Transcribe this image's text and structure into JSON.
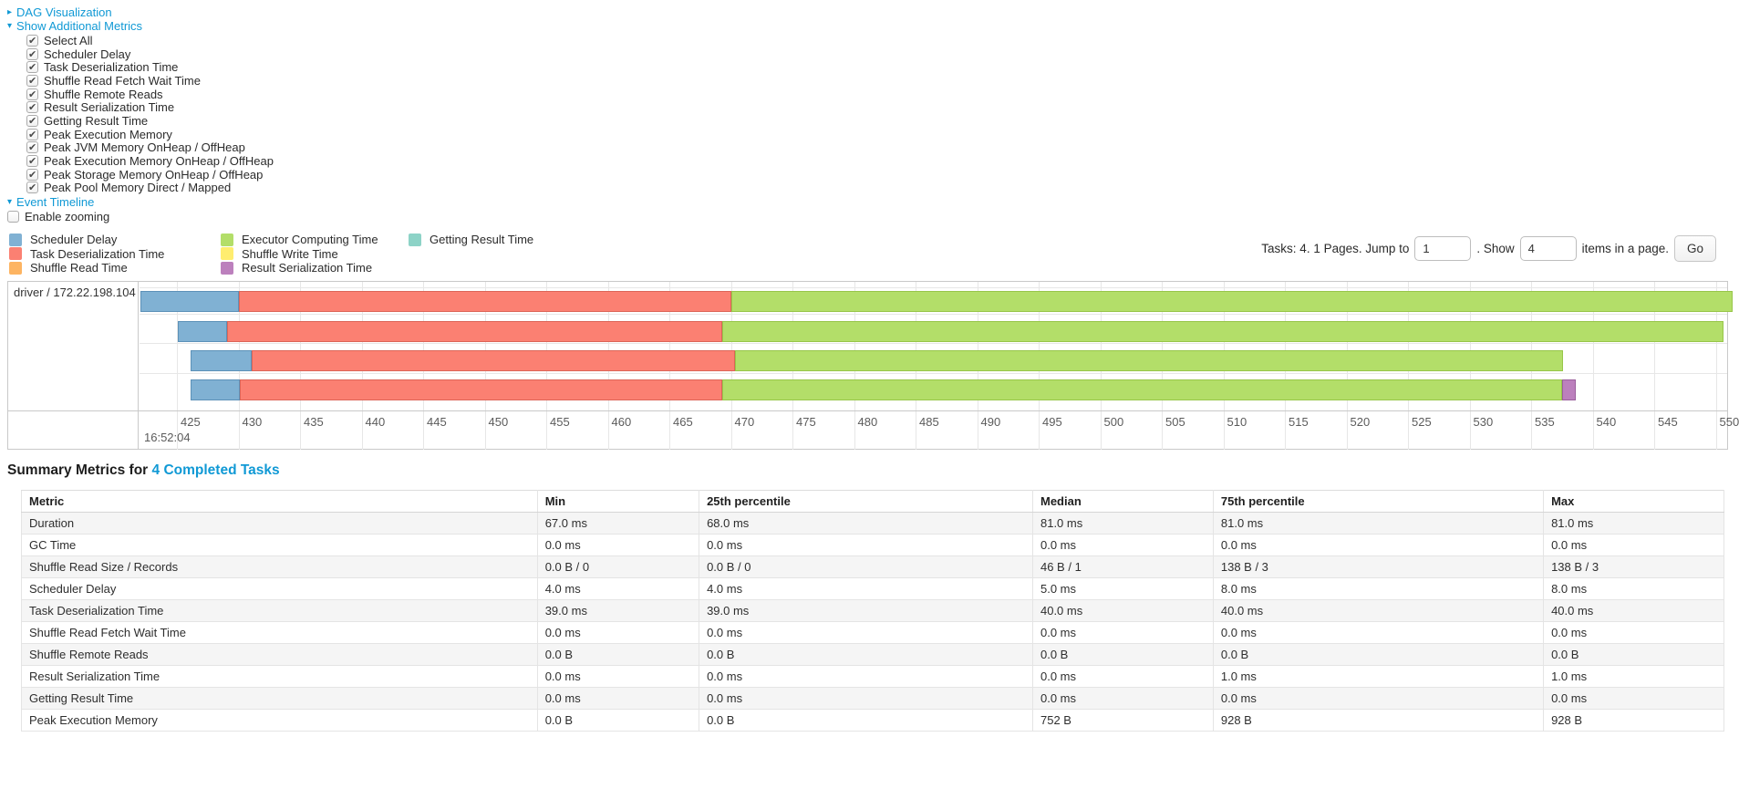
{
  "colors": {
    "accent": "#1099d5",
    "scheduler_delay": "#80B1D3",
    "task_deserialization": "#FB8072",
    "shuffle_read": "#FDB462",
    "executor_computing": "#B3DE69",
    "shuffle_write": "#FFED6F",
    "result_serialization": "#BC80BD",
    "getting_result": "#8DD3C7"
  },
  "controls": {
    "dag": {
      "label": "DAG Visualization",
      "arrow": "▸"
    },
    "metrics_toggle": {
      "label": "Show Additional Metrics",
      "arrow": "▾"
    },
    "metric_checkboxes": [
      "Select All",
      "Scheduler Delay",
      "Task Deserialization Time",
      "Shuffle Read Fetch Wait Time",
      "Shuffle Remote Reads",
      "Result Serialization Time",
      "Getting Result Time",
      "Peak Execution Memory",
      "Peak JVM Memory OnHeap / OffHeap",
      "Peak Execution Memory OnHeap / OffHeap",
      "Peak Storage Memory OnHeap / OffHeap",
      "Peak Pool Memory Direct / Mapped"
    ],
    "event_timeline": {
      "label": "Event Timeline",
      "arrow": "▾"
    },
    "enable_zooming": {
      "label": "Enable zooming",
      "checked": false
    }
  },
  "legend": {
    "columns": [
      [
        {
          "label": "Scheduler Delay",
          "color": "#80B1D3"
        },
        {
          "label": "Task Deserialization Time",
          "color": "#FB8072"
        },
        {
          "label": "Shuffle Read Time",
          "color": "#FDB462"
        }
      ],
      [
        {
          "label": "Executor Computing Time",
          "color": "#B3DE69"
        },
        {
          "label": "Shuffle Write Time",
          "color": "#FFED6F"
        },
        {
          "label": "Result Serialization Time",
          "color": "#BC80BD"
        }
      ],
      [
        {
          "label": "Getting Result Time",
          "color": "#8DD3C7"
        }
      ]
    ]
  },
  "pagination": {
    "prefix": "Tasks: 4. 1 Pages. Jump to",
    "jump_value": "1",
    "mid": ". Show",
    "show_value": "4",
    "suffix": "items in a page.",
    "go": "Go"
  },
  "chart_data": {
    "type": "timeline",
    "group_label": "driver / 172.22.198.104",
    "x_axis": {
      "unit": "ms within second",
      "ticks": [
        425,
        430,
        435,
        440,
        445,
        450,
        455,
        460,
        465,
        470,
        475,
        480,
        485,
        490,
        495,
        500,
        505,
        510,
        515,
        520,
        525,
        530,
        535,
        540,
        545,
        550
      ],
      "major_label": "16:52:04"
    },
    "tasks": [
      {
        "start": 422.0,
        "segments": [
          {
            "name": "Scheduler Delay",
            "end": 430.0,
            "color": "#80B1D3",
            "border": "#5C91B8"
          },
          {
            "name": "Task Deserialization Time",
            "end": 470.0,
            "color": "#FB8072",
            "border": "#DC6558"
          },
          {
            "name": "Executor Computing Time",
            "end": 551.4,
            "color": "#B3DE69",
            "border": "#97C649"
          }
        ]
      },
      {
        "start": 425.1,
        "segments": [
          {
            "name": "Scheduler Delay",
            "end": 429.1,
            "color": "#80B1D3",
            "border": "#5C91B8"
          },
          {
            "name": "Task Deserialization Time",
            "end": 469.3,
            "color": "#FB8072",
            "border": "#DC6558"
          },
          {
            "name": "Executor Computing Time",
            "end": 550.6,
            "color": "#B3DE69",
            "border": "#97C649"
          }
        ]
      },
      {
        "start": 426.1,
        "segments": [
          {
            "name": "Scheduler Delay",
            "end": 431.1,
            "color": "#80B1D3",
            "border": "#5C91B8"
          },
          {
            "name": "Task Deserialization Time",
            "end": 470.3,
            "color": "#FB8072",
            "border": "#DC6558"
          },
          {
            "name": "Executor Computing Time",
            "end": 537.6,
            "color": "#B3DE69",
            "border": "#97C649"
          }
        ]
      },
      {
        "start": 426.1,
        "segments": [
          {
            "name": "Scheduler Delay",
            "end": 430.1,
            "color": "#80B1D3",
            "border": "#5C91B8"
          },
          {
            "name": "Task Deserialization Time",
            "end": 469.3,
            "color": "#FB8072",
            "border": "#DC6558"
          },
          {
            "name": "Executor Computing Time",
            "end": 537.5,
            "color": "#B3DE69",
            "border": "#97C649"
          },
          {
            "name": "Result Serialization Time",
            "end": 538.6,
            "color": "#BC80BD",
            "border": "#9B5F9C"
          }
        ]
      }
    ]
  },
  "summary": {
    "heading": "Summary Metrics for",
    "link": "4 Completed Tasks",
    "table": {
      "headers": [
        "Metric",
        "Min",
        "25th percentile",
        "Median",
        "75th percentile",
        "Max"
      ],
      "rows": [
        [
          "Duration",
          "67.0 ms",
          "68.0 ms",
          "81.0 ms",
          "81.0 ms",
          "81.0 ms"
        ],
        [
          "GC Time",
          "0.0 ms",
          "0.0 ms",
          "0.0 ms",
          "0.0 ms",
          "0.0 ms"
        ],
        [
          "Shuffle Read Size / Records",
          "0.0 B / 0",
          "0.0 B / 0",
          "46 B / 1",
          "138 B / 3",
          "138 B / 3"
        ],
        [
          "Scheduler Delay",
          "4.0 ms",
          "4.0 ms",
          "5.0 ms",
          "8.0 ms",
          "8.0 ms"
        ],
        [
          "Task Deserialization Time",
          "39.0 ms",
          "39.0 ms",
          "40.0 ms",
          "40.0 ms",
          "40.0 ms"
        ],
        [
          "Shuffle Read Fetch Wait Time",
          "0.0 ms",
          "0.0 ms",
          "0.0 ms",
          "0.0 ms",
          "0.0 ms"
        ],
        [
          "Shuffle Remote Reads",
          "0.0 B",
          "0.0 B",
          "0.0 B",
          "0.0 B",
          "0.0 B"
        ],
        [
          "Result Serialization Time",
          "0.0 ms",
          "0.0 ms",
          "0.0 ms",
          "1.0 ms",
          "1.0 ms"
        ],
        [
          "Getting Result Time",
          "0.0 ms",
          "0.0 ms",
          "0.0 ms",
          "0.0 ms",
          "0.0 ms"
        ],
        [
          "Peak Execution Memory",
          "0.0 B",
          "0.0 B",
          "752 B",
          "928 B",
          "928 B"
        ]
      ]
    }
  }
}
